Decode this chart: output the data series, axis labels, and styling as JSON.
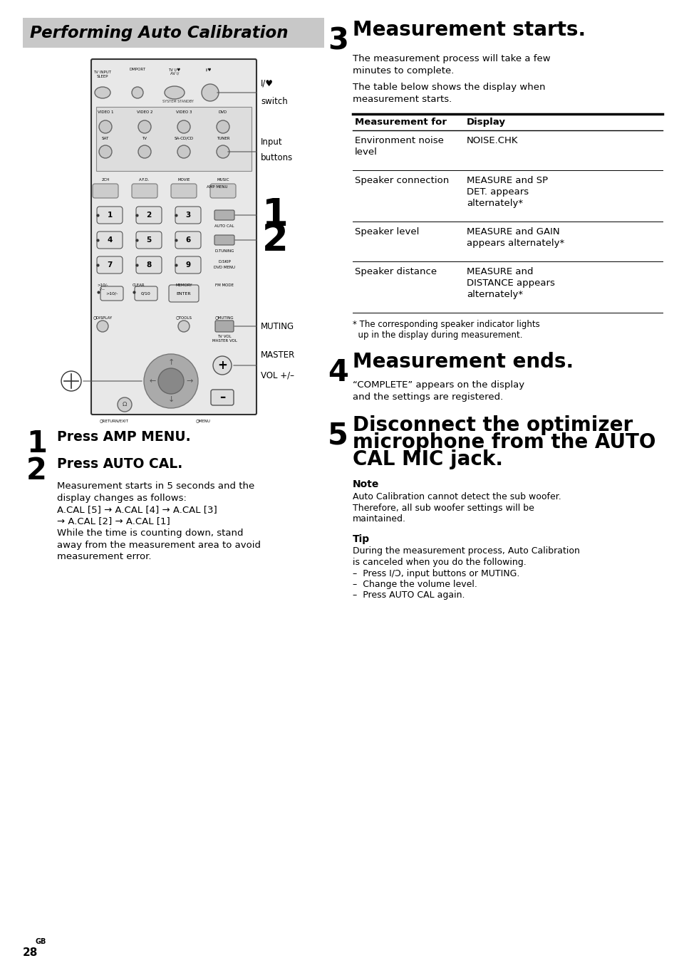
{
  "page_bg": "#ffffff",
  "header_bg": "#c8c8c8",
  "header_text": "Performing Auto Calibration",
  "step1_heading": "Press AMP MENU.",
  "step2_heading": "Press AUTO CAL.",
  "step2_body_lines": [
    "Measurement starts in 5 seconds and the",
    "display changes as follows:",
    "A.CAL [5] → A.CAL [4] → A.CAL [3]",
    "→ A.CAL [2] → A.CAL [1]",
    "While the time is counting down, stand",
    "away from the measurement area to avoid",
    "measurement error."
  ],
  "step3_heading": "Measurement starts.",
  "step3_body1_lines": [
    "The measurement process will take a few",
    "minutes to complete."
  ],
  "step3_body2_lines": [
    "The table below shows the display when",
    "measurement starts."
  ],
  "table_headers": [
    "Measurement for",
    "Display"
  ],
  "table_rows": [
    [
      "Environment noise\nlevel",
      "NOISE.CHK"
    ],
    [
      "Speaker connection",
      "MEASURE and SP\nDET. appears\nalternately*"
    ],
    [
      "Speaker level",
      "MEASURE and GAIN\nappears alternately*"
    ],
    [
      "Speaker distance",
      "MEASURE and\nDISTANCE appears\nalternately*"
    ]
  ],
  "table_note_lines": [
    "* The corresponding speaker indicator lights",
    "  up in the display during measurement."
  ],
  "step4_heading": "Measurement ends.",
  "step4_body_lines": [
    "“COMPLETE” appears on the display",
    "and the settings are registered."
  ],
  "step5_heading_lines": [
    "Disconnect the optimizer",
    "microphone from the AUTO",
    "CAL MIC jack."
  ],
  "note_title": "Note",
  "note_body_lines": [
    "Auto Calibration cannot detect the sub woofer.",
    "Therefore, all sub woofer settings will be",
    "maintained."
  ],
  "tip_title": "Tip",
  "tip_body_lines": [
    "During the measurement process, Auto Calibration",
    "is canceled when you do the following.",
    "–  Press I/Ɔ, input buttons or MUTING.",
    "–  Change the volume level.",
    "–  Press AUTO CAL again."
  ],
  "page_number_main": "28",
  "page_number_super": "GB"
}
